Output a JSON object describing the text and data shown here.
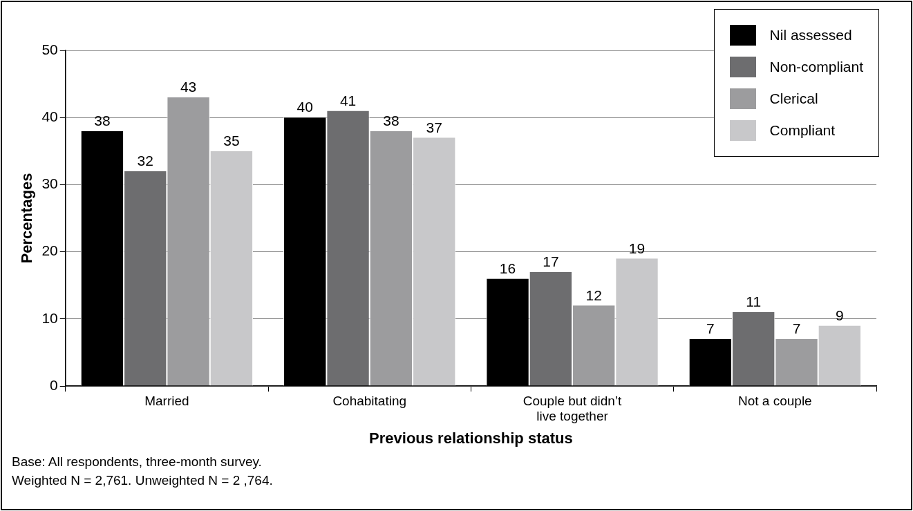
{
  "chart_data": {
    "type": "bar",
    "xlabel": "Previous relationship status",
    "ylabel": "Percentages",
    "categories": [
      "Married",
      "Cohabitating",
      "Couple but didn’t live together",
      "Not a couple"
    ],
    "series": [
      {
        "name": "Nil assessed",
        "color": "#000000",
        "values": [
          38,
          40,
          16,
          7
        ]
      },
      {
        "name": "Non-compliant",
        "color": "#6d6d6f",
        "values": [
          32,
          41,
          17,
          11
        ]
      },
      {
        "name": "Clerical",
        "color": "#9c9c9e",
        "values": [
          43,
          38,
          12,
          7
        ]
      },
      {
        "name": "Compliant",
        "color": "#c8c8ca",
        "values": [
          35,
          37,
          19,
          9
        ]
      }
    ],
    "ylim": [
      0,
      50
    ],
    "yticks": [
      0,
      10,
      20,
      30,
      40,
      50
    ],
    "grid": "y",
    "legend": "top right",
    "data_labels": true,
    "annotations": [
      "Base: All respondents, three-month survey.",
      "Weighted N = 2,761. Unweighted N = 2 ,764."
    ]
  }
}
